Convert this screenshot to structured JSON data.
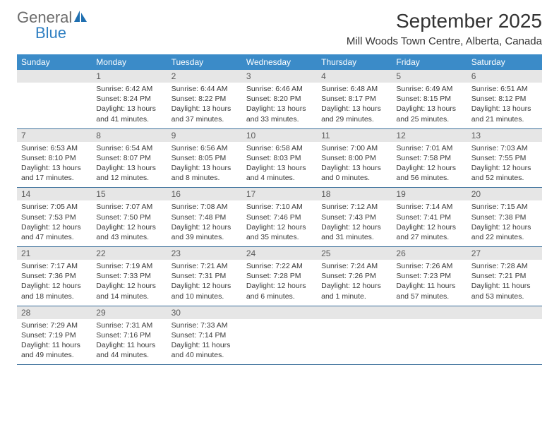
{
  "logo": {
    "line1": "General",
    "line2": "Blue",
    "color1": "#6b6b6b",
    "color2": "#2f7fc2"
  },
  "title": "September 2025",
  "location": "Mill Woods Town Centre, Alberta, Canada",
  "colors": {
    "header_bg": "#3b8bc8",
    "header_text": "#ffffff",
    "daynum_bg": "#e6e6e6",
    "daynum_text": "#5a5a5a",
    "row_border": "#3b6f9a",
    "body_text": "#3a3a3a"
  },
  "fonts": {
    "title_pt": 28,
    "location_pt": 15,
    "dow_pt": 12,
    "daynum_pt": 12,
    "body_pt": 10.5
  },
  "days_of_week": [
    "Sunday",
    "Monday",
    "Tuesday",
    "Wednesday",
    "Thursday",
    "Friday",
    "Saturday"
  ],
  "weeks": [
    [
      {
        "num": "",
        "sunrise": "",
        "sunset": "",
        "daylight": ""
      },
      {
        "num": "1",
        "sunrise": "Sunrise: 6:42 AM",
        "sunset": "Sunset: 8:24 PM",
        "daylight": "Daylight: 13 hours and 41 minutes."
      },
      {
        "num": "2",
        "sunrise": "Sunrise: 6:44 AM",
        "sunset": "Sunset: 8:22 PM",
        "daylight": "Daylight: 13 hours and 37 minutes."
      },
      {
        "num": "3",
        "sunrise": "Sunrise: 6:46 AM",
        "sunset": "Sunset: 8:20 PM",
        "daylight": "Daylight: 13 hours and 33 minutes."
      },
      {
        "num": "4",
        "sunrise": "Sunrise: 6:48 AM",
        "sunset": "Sunset: 8:17 PM",
        "daylight": "Daylight: 13 hours and 29 minutes."
      },
      {
        "num": "5",
        "sunrise": "Sunrise: 6:49 AM",
        "sunset": "Sunset: 8:15 PM",
        "daylight": "Daylight: 13 hours and 25 minutes."
      },
      {
        "num": "6",
        "sunrise": "Sunrise: 6:51 AM",
        "sunset": "Sunset: 8:12 PM",
        "daylight": "Daylight: 13 hours and 21 minutes."
      }
    ],
    [
      {
        "num": "7",
        "sunrise": "Sunrise: 6:53 AM",
        "sunset": "Sunset: 8:10 PM",
        "daylight": "Daylight: 13 hours and 17 minutes."
      },
      {
        "num": "8",
        "sunrise": "Sunrise: 6:54 AM",
        "sunset": "Sunset: 8:07 PM",
        "daylight": "Daylight: 13 hours and 12 minutes."
      },
      {
        "num": "9",
        "sunrise": "Sunrise: 6:56 AM",
        "sunset": "Sunset: 8:05 PM",
        "daylight": "Daylight: 13 hours and 8 minutes."
      },
      {
        "num": "10",
        "sunrise": "Sunrise: 6:58 AM",
        "sunset": "Sunset: 8:03 PM",
        "daylight": "Daylight: 13 hours and 4 minutes."
      },
      {
        "num": "11",
        "sunrise": "Sunrise: 7:00 AM",
        "sunset": "Sunset: 8:00 PM",
        "daylight": "Daylight: 13 hours and 0 minutes."
      },
      {
        "num": "12",
        "sunrise": "Sunrise: 7:01 AM",
        "sunset": "Sunset: 7:58 PM",
        "daylight": "Daylight: 12 hours and 56 minutes."
      },
      {
        "num": "13",
        "sunrise": "Sunrise: 7:03 AM",
        "sunset": "Sunset: 7:55 PM",
        "daylight": "Daylight: 12 hours and 52 minutes."
      }
    ],
    [
      {
        "num": "14",
        "sunrise": "Sunrise: 7:05 AM",
        "sunset": "Sunset: 7:53 PM",
        "daylight": "Daylight: 12 hours and 47 minutes."
      },
      {
        "num": "15",
        "sunrise": "Sunrise: 7:07 AM",
        "sunset": "Sunset: 7:50 PM",
        "daylight": "Daylight: 12 hours and 43 minutes."
      },
      {
        "num": "16",
        "sunrise": "Sunrise: 7:08 AM",
        "sunset": "Sunset: 7:48 PM",
        "daylight": "Daylight: 12 hours and 39 minutes."
      },
      {
        "num": "17",
        "sunrise": "Sunrise: 7:10 AM",
        "sunset": "Sunset: 7:46 PM",
        "daylight": "Daylight: 12 hours and 35 minutes."
      },
      {
        "num": "18",
        "sunrise": "Sunrise: 7:12 AM",
        "sunset": "Sunset: 7:43 PM",
        "daylight": "Daylight: 12 hours and 31 minutes."
      },
      {
        "num": "19",
        "sunrise": "Sunrise: 7:14 AM",
        "sunset": "Sunset: 7:41 PM",
        "daylight": "Daylight: 12 hours and 27 minutes."
      },
      {
        "num": "20",
        "sunrise": "Sunrise: 7:15 AM",
        "sunset": "Sunset: 7:38 PM",
        "daylight": "Daylight: 12 hours and 22 minutes."
      }
    ],
    [
      {
        "num": "21",
        "sunrise": "Sunrise: 7:17 AM",
        "sunset": "Sunset: 7:36 PM",
        "daylight": "Daylight: 12 hours and 18 minutes."
      },
      {
        "num": "22",
        "sunrise": "Sunrise: 7:19 AM",
        "sunset": "Sunset: 7:33 PM",
        "daylight": "Daylight: 12 hours and 14 minutes."
      },
      {
        "num": "23",
        "sunrise": "Sunrise: 7:21 AM",
        "sunset": "Sunset: 7:31 PM",
        "daylight": "Daylight: 12 hours and 10 minutes."
      },
      {
        "num": "24",
        "sunrise": "Sunrise: 7:22 AM",
        "sunset": "Sunset: 7:28 PM",
        "daylight": "Daylight: 12 hours and 6 minutes."
      },
      {
        "num": "25",
        "sunrise": "Sunrise: 7:24 AM",
        "sunset": "Sunset: 7:26 PM",
        "daylight": "Daylight: 12 hours and 1 minute."
      },
      {
        "num": "26",
        "sunrise": "Sunrise: 7:26 AM",
        "sunset": "Sunset: 7:23 PM",
        "daylight": "Daylight: 11 hours and 57 minutes."
      },
      {
        "num": "27",
        "sunrise": "Sunrise: 7:28 AM",
        "sunset": "Sunset: 7:21 PM",
        "daylight": "Daylight: 11 hours and 53 minutes."
      }
    ],
    [
      {
        "num": "28",
        "sunrise": "Sunrise: 7:29 AM",
        "sunset": "Sunset: 7:19 PM",
        "daylight": "Daylight: 11 hours and 49 minutes."
      },
      {
        "num": "29",
        "sunrise": "Sunrise: 7:31 AM",
        "sunset": "Sunset: 7:16 PM",
        "daylight": "Daylight: 11 hours and 44 minutes."
      },
      {
        "num": "30",
        "sunrise": "Sunrise: 7:33 AM",
        "sunset": "Sunset: 7:14 PM",
        "daylight": "Daylight: 11 hours and 40 minutes."
      },
      {
        "num": "",
        "sunrise": "",
        "sunset": "",
        "daylight": ""
      },
      {
        "num": "",
        "sunrise": "",
        "sunset": "",
        "daylight": ""
      },
      {
        "num": "",
        "sunrise": "",
        "sunset": "",
        "daylight": ""
      },
      {
        "num": "",
        "sunrise": "",
        "sunset": "",
        "daylight": ""
      }
    ]
  ]
}
